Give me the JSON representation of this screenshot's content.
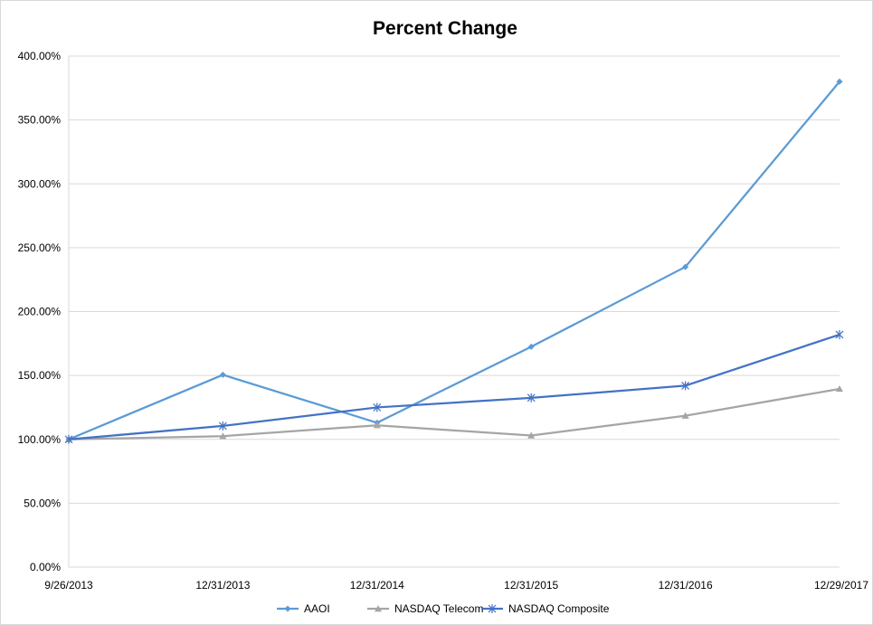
{
  "chart_data": {
    "type": "line",
    "title": "Percent Change",
    "xlabel": "",
    "ylabel": "",
    "categories": [
      "9/26/2013",
      "12/31/2013",
      "12/31/2014",
      "12/31/2015",
      "12/31/2016",
      "12/29/2017"
    ],
    "yticks": [
      "0.00%",
      "50.00%",
      "100.00%",
      "150.00%",
      "200.00%",
      "250.00%",
      "300.00%",
      "350.00%",
      "400.00%"
    ],
    "ylim": [
      0,
      400
    ],
    "grid": true,
    "legend_position": "bottom",
    "series": [
      {
        "name": "AAOI",
        "marker": "diamond",
        "color": "#5b9bd5",
        "values": [
          100,
          150.5,
          113,
          172.5,
          235,
          380
        ]
      },
      {
        "name": "NASDAQ Telecom",
        "marker": "triangle",
        "color": "#a5a5a5",
        "values": [
          100,
          102.5,
          111,
          103,
          118.5,
          139.5
        ]
      },
      {
        "name": "NASDAQ Composite",
        "marker": "asterisk",
        "color": "#4472c4",
        "values": [
          100,
          110.5,
          125,
          132.5,
          142,
          182
        ]
      }
    ]
  }
}
